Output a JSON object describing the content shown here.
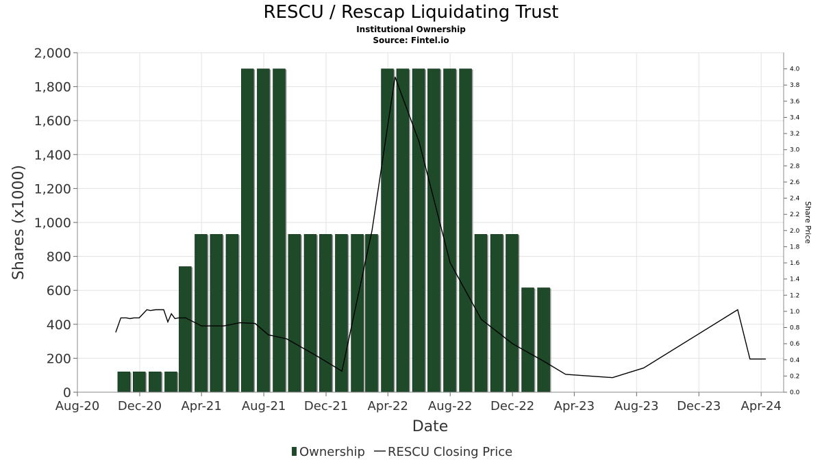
{
  "chart_data": {
    "type": "bar",
    "title": "RESCU / Rescap Liquidating Trust",
    "subtitle": "Institutional Ownership",
    "source": "Source: Fintel.io",
    "xlabel": "Date",
    "ylabel": "Shares (x1000)",
    "y2label": "Share Price",
    "ylim": [
      0,
      2000
    ],
    "y2lim": [
      0,
      4.2
    ],
    "xlim": [
      "2020-08-01",
      "2024-05-15"
    ],
    "yticks": [
      0,
      200,
      400,
      600,
      800,
      1000,
      1200,
      1400,
      1600,
      1800,
      2000
    ],
    "yticklabels": [
      "0",
      "200",
      "400",
      "600",
      "800",
      "1,000",
      "1,200",
      "1,400",
      "1,600",
      "1,800",
      "2,000"
    ],
    "y2ticks": [
      0.0,
      0.2,
      0.4,
      0.6,
      0.8,
      1.0,
      1.2,
      1.4,
      1.6,
      1.8,
      2.0,
      2.2,
      2.4,
      2.6,
      2.8,
      3.0,
      3.2,
      3.4,
      3.6,
      3.8,
      4.0
    ],
    "y2ticklabels": [
      "0.0",
      "0.2",
      "0.4",
      "0.6",
      "0.8",
      "1.0",
      "1.2",
      "1.4",
      "1.6",
      "1.8",
      "2.0",
      "2.2",
      "2.4",
      "2.6",
      "2.8",
      "3.0",
      "3.2",
      "3.4",
      "3.6",
      "3.8",
      "4.0"
    ],
    "xticks": [
      "2020-08-01",
      "2020-12-01",
      "2021-04-01",
      "2021-08-01",
      "2021-12-01",
      "2022-04-01",
      "2022-08-01",
      "2022-12-01",
      "2023-04-01",
      "2023-08-01",
      "2023-12-01",
      "2024-04-01"
    ],
    "xticklabels": [
      "Aug-20",
      "Dec-20",
      "Apr-21",
      "Aug-21",
      "Dec-21",
      "Apr-22",
      "Aug-22",
      "Dec-22",
      "Apr-23",
      "Aug-23",
      "Dec-23",
      "Apr-24"
    ],
    "grid": true,
    "legend_position": "bottom",
    "series": [
      {
        "name": "Ownership",
        "kind": "bar",
        "axis": "left",
        "color": "#1e4a2a",
        "points": [
          {
            "x": "2020-10-31",
            "y": 120
          },
          {
            "x": "2020-11-30",
            "y": 120
          },
          {
            "x": "2020-12-31",
            "y": 120
          },
          {
            "x": "2021-01-31",
            "y": 120
          },
          {
            "x": "2021-02-28",
            "y": 740
          },
          {
            "x": "2021-03-31",
            "y": 930
          },
          {
            "x": "2021-04-30",
            "y": 930
          },
          {
            "x": "2021-05-31",
            "y": 930
          },
          {
            "x": "2021-06-30",
            "y": 1905
          },
          {
            "x": "2021-07-31",
            "y": 1905
          },
          {
            "x": "2021-08-31",
            "y": 1905
          },
          {
            "x": "2021-09-30",
            "y": 930
          },
          {
            "x": "2021-10-31",
            "y": 930
          },
          {
            "x": "2021-11-30",
            "y": 930
          },
          {
            "x": "2021-12-31",
            "y": 930
          },
          {
            "x": "2022-01-31",
            "y": 930
          },
          {
            "x": "2022-02-28",
            "y": 930
          },
          {
            "x": "2022-03-31",
            "y": 1905
          },
          {
            "x": "2022-04-30",
            "y": 1905
          },
          {
            "x": "2022-05-31",
            "y": 1905
          },
          {
            "x": "2022-06-30",
            "y": 1905
          },
          {
            "x": "2022-07-31",
            "y": 1905
          },
          {
            "x": "2022-08-31",
            "y": 1905
          },
          {
            "x": "2022-09-30",
            "y": 930
          },
          {
            "x": "2022-10-31",
            "y": 930
          },
          {
            "x": "2022-11-30",
            "y": 930
          },
          {
            "x": "2022-12-31",
            "y": 615
          },
          {
            "x": "2023-01-31",
            "y": 615
          }
        ]
      },
      {
        "name": "RESCU Closing Price",
        "kind": "line",
        "axis": "right",
        "color": "#000000",
        "points": [
          {
            "x": "2020-10-15",
            "y": 0.74
          },
          {
            "x": "2020-10-25",
            "y": 0.92
          },
          {
            "x": "2020-11-05",
            "y": 0.92
          },
          {
            "x": "2020-11-12",
            "y": 0.91
          },
          {
            "x": "2020-11-20",
            "y": 0.92
          },
          {
            "x": "2020-11-30",
            "y": 0.92
          },
          {
            "x": "2020-12-15",
            "y": 1.02
          },
          {
            "x": "2020-12-22",
            "y": 1.01
          },
          {
            "x": "2021-01-01",
            "y": 1.02
          },
          {
            "x": "2021-01-10",
            "y": 1.02
          },
          {
            "x": "2021-01-17",
            "y": 1.02
          },
          {
            "x": "2021-01-25",
            "y": 0.87
          },
          {
            "x": "2021-02-01",
            "y": 0.97
          },
          {
            "x": "2021-02-08",
            "y": 0.91
          },
          {
            "x": "2021-02-15",
            "y": 0.92
          },
          {
            "x": "2021-03-01",
            "y": 0.92
          },
          {
            "x": "2021-04-01",
            "y": 0.82
          },
          {
            "x": "2021-05-15",
            "y": 0.82
          },
          {
            "x": "2021-06-15",
            "y": 0.86
          },
          {
            "x": "2021-07-15",
            "y": 0.85
          },
          {
            "x": "2021-08-10",
            "y": 0.71
          },
          {
            "x": "2021-09-15",
            "y": 0.66
          },
          {
            "x": "2021-11-15",
            "y": 0.44
          },
          {
            "x": "2022-01-01",
            "y": 0.26
          },
          {
            "x": "2022-03-01",
            "y": 2.0
          },
          {
            "x": "2022-04-15",
            "y": 3.9
          },
          {
            "x": "2022-06-01",
            "y": 3.1
          },
          {
            "x": "2022-08-01",
            "y": 1.6
          },
          {
            "x": "2022-10-01",
            "y": 0.9
          },
          {
            "x": "2022-12-01",
            "y": 0.6
          },
          {
            "x": "2023-02-01",
            "y": 0.38
          },
          {
            "x": "2023-03-15",
            "y": 0.22
          },
          {
            "x": "2023-06-15",
            "y": 0.18
          },
          {
            "x": "2023-08-15",
            "y": 0.3
          },
          {
            "x": "2024-02-15",
            "y": 1.02
          },
          {
            "x": "2024-03-10",
            "y": 0.41
          },
          {
            "x": "2024-04-10",
            "y": 0.41
          }
        ]
      }
    ]
  }
}
